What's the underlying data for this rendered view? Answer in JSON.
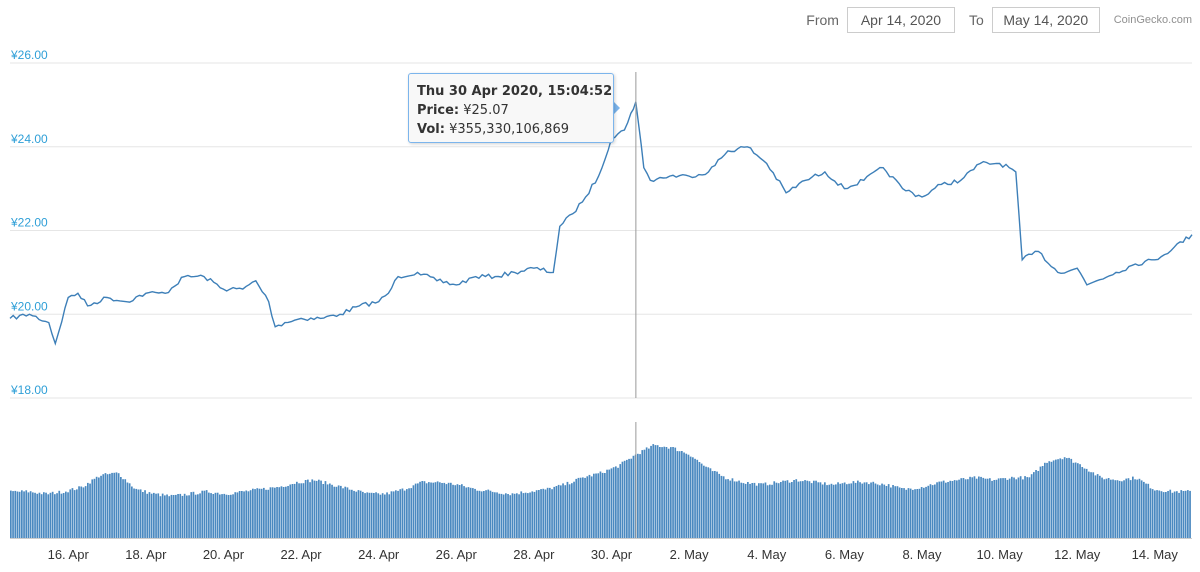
{
  "range_selector": {
    "from_label": "From",
    "from_value": "Apr 14, 2020",
    "to_label": "To",
    "to_value": "May 14, 2020",
    "brand": "CoinGecko.com"
  },
  "tooltip": {
    "title": "Thu 30 Apr 2020, 15:04:52",
    "price_label": "Price:",
    "price_value": "¥25.07",
    "vol_label": "Vol:",
    "vol_value": "¥355,330,106,869"
  },
  "colors": {
    "line": "#3d7fb8",
    "volume": "#4a89c0",
    "grid": "#e6e6e6",
    "axis_label": "#2f9fd7",
    "crosshair": "#999999"
  },
  "chart_data": {
    "type": "line",
    "title": "",
    "xlabel": "",
    "ylabel": "",
    "x_start": "2020-04-14T12:00",
    "x_end": "2020-05-14T23:00",
    "ylim": [
      18,
      26
    ],
    "y_ticks": [
      "¥18.00",
      "¥20.00",
      "¥22.00",
      "¥24.00",
      "¥26.00"
    ],
    "y_tick_values": [
      18,
      20,
      22,
      24,
      26
    ],
    "x_ticks": [
      "16. Apr",
      "18. Apr",
      "20. Apr",
      "22. Apr",
      "24. Apr",
      "26. Apr",
      "28. Apr",
      "30. Apr",
      "2. May",
      "4. May",
      "6. May",
      "8. May",
      "10. May",
      "12. May",
      "14. May"
    ],
    "x_tick_dates": [
      "2020-04-16",
      "2020-04-18",
      "2020-04-20",
      "2020-04-22",
      "2020-04-24",
      "2020-04-26",
      "2020-04-28",
      "2020-04-30",
      "2020-05-02",
      "2020-05-04",
      "2020-05-06",
      "2020-05-08",
      "2020-05-10",
      "2020-05-12",
      "2020-05-14"
    ],
    "crosshair_time": "2020-04-30T15:04",
    "grid": true,
    "series": [
      {
        "x": [
          "2020-04-14T12:00",
          "2020-04-15T00:00",
          "2020-04-15T12:00",
          "2020-04-15T16:00",
          "2020-04-16T00:00",
          "2020-04-16T06:00",
          "2020-04-16T12:00",
          "2020-04-17T00:00",
          "2020-04-17T12:00",
          "2020-04-18T00:00",
          "2020-04-18T12:00",
          "2020-04-19T00:00",
          "2020-04-19T12:00",
          "2020-04-20T00:00",
          "2020-04-20T12:00",
          "2020-04-20T20:00",
          "2020-04-21T04:00",
          "2020-04-21T08:00",
          "2020-04-21T14:00",
          "2020-04-22T00:00",
          "2020-04-22T12:00",
          "2020-04-23T00:00",
          "2020-04-23T12:00",
          "2020-04-24T00:00",
          "2020-04-24T06:00",
          "2020-04-24T12:00",
          "2020-04-25T00:00",
          "2020-04-25T12:00",
          "2020-04-26T00:00",
          "2020-04-26T12:00",
          "2020-04-27T00:00",
          "2020-04-27T12:00",
          "2020-04-28T00:00",
          "2020-04-28T12:00",
          "2020-04-28T16:00",
          "2020-04-29T00:00",
          "2020-04-29T08:00",
          "2020-04-29T16:00",
          "2020-04-30T00:00",
          "2020-04-30T08:00",
          "2020-04-30T12:00",
          "2020-04-30T15:00",
          "2020-04-30T20:00",
          "2020-05-01T00:00",
          "2020-05-01T12:00",
          "2020-05-02T00:00",
          "2020-05-02T12:00",
          "2020-05-03T00:00",
          "2020-05-03T12:00",
          "2020-05-04T00:00",
          "2020-05-04T12:00",
          "2020-05-05T00:00",
          "2020-05-05T12:00",
          "2020-05-06T00:00",
          "2020-05-06T12:00",
          "2020-05-07T00:00",
          "2020-05-07T12:00",
          "2020-05-08T00:00",
          "2020-05-08T12:00",
          "2020-05-09T00:00",
          "2020-05-09T12:00",
          "2020-05-10T00:00",
          "2020-05-10T06:00",
          "2020-05-10T10:00",
          "2020-05-10T14:00",
          "2020-05-11T00:00",
          "2020-05-11T12:00",
          "2020-05-12T00:00",
          "2020-05-12T06:00",
          "2020-05-12T12:00",
          "2020-05-13T00:00",
          "2020-05-13T12:00",
          "2020-05-14T00:00",
          "2020-05-14T12:00",
          "2020-05-14T23:00"
        ],
        "values": [
          19.9,
          20.0,
          19.8,
          19.3,
          20.4,
          20.5,
          20.2,
          20.4,
          20.3,
          20.5,
          20.5,
          20.9,
          20.9,
          20.6,
          20.6,
          20.8,
          20.3,
          19.7,
          19.8,
          19.9,
          19.9,
          20.0,
          20.2,
          20.3,
          20.5,
          20.9,
          21.0,
          20.8,
          20.7,
          20.9,
          20.9,
          21.0,
          21.1,
          21.0,
          22.1,
          22.4,
          22.8,
          23.3,
          24.2,
          24.4,
          24.8,
          25.07,
          23.5,
          23.2,
          23.3,
          23.3,
          23.4,
          23.9,
          24.0,
          23.6,
          22.9,
          23.2,
          23.4,
          23.0,
          23.2,
          23.5,
          23.0,
          22.8,
          23.1,
          23.2,
          23.6,
          23.6,
          23.5,
          23.4,
          21.3,
          21.5,
          21.0,
          21.1,
          20.7,
          20.8,
          21.0,
          21.2,
          21.3,
          21.6,
          21.9
        ]
      }
    ],
    "volume_series": {
      "relative_height": [
        0.4,
        0.4,
        0.38,
        0.4,
        0.44,
        0.54,
        0.56,
        0.42,
        0.38,
        0.36,
        0.38,
        0.4,
        0.38,
        0.4,
        0.42,
        0.44,
        0.48,
        0.5,
        0.46,
        0.42,
        0.38,
        0.38,
        0.42,
        0.48,
        0.48,
        0.46,
        0.42,
        0.4,
        0.38,
        0.4,
        0.42,
        0.46,
        0.52,
        0.56,
        0.62,
        0.72,
        0.8,
        0.78,
        0.72,
        0.6,
        0.52,
        0.48,
        0.46,
        0.48,
        0.5,
        0.48,
        0.46,
        0.48,
        0.48,
        0.46,
        0.42,
        0.44,
        0.48,
        0.5,
        0.52,
        0.5,
        0.52,
        0.52,
        0.66,
        0.7,
        0.62,
        0.52,
        0.5,
        0.52,
        0.42,
        0.4,
        0.4
      ]
    }
  }
}
